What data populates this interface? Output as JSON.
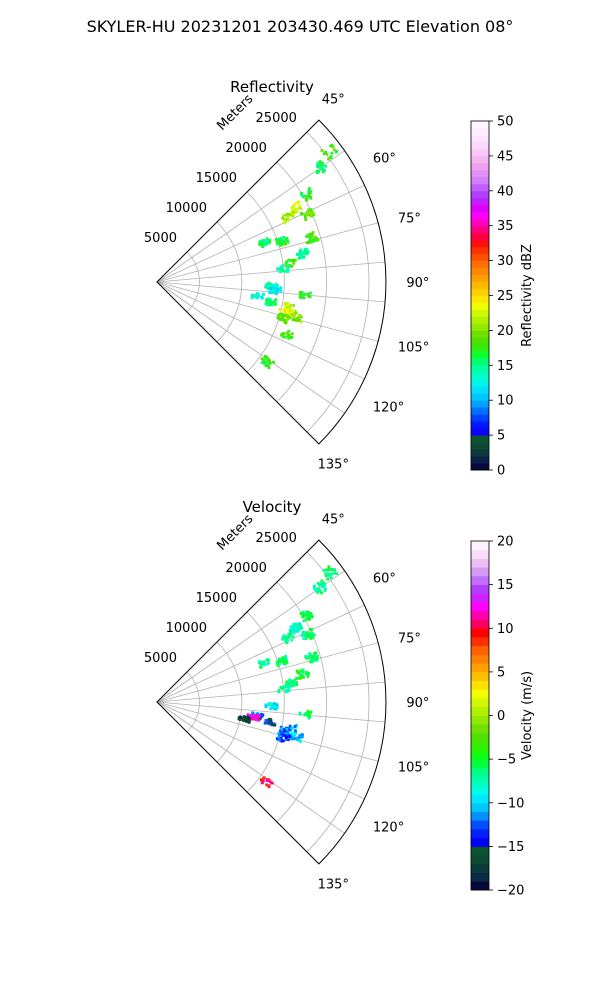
{
  "figure": {
    "title": "SKYLER-HU  20231201  203430.469 UTC Elevation 08°"
  },
  "chart_data": [
    {
      "type": "heatmap",
      "projection": "polar-sector",
      "title": "Reflectivity",
      "radial_label": "Meters",
      "radial_ticks": [
        5000,
        10000,
        15000,
        20000,
        25000
      ],
      "radial_tick_labels": [
        "5000",
        "10000",
        "15000",
        "20000",
        "25000"
      ],
      "rlim": [
        0,
        27000
      ],
      "angle_ticks": [
        45,
        60,
        75,
        90,
        105,
        120,
        135
      ],
      "angle_tick_labels": [
        "45°",
        "60°",
        "75°",
        "90°",
        "105°",
        "120°",
        "135°"
      ],
      "angle_range": [
        45,
        135
      ],
      "grid": true,
      "colorbar": {
        "label": "Reflectivity dBZ",
        "range": [
          0,
          50
        ],
        "ticks": [
          0,
          5,
          10,
          15,
          20,
          25,
          30,
          35,
          40,
          45,
          50
        ],
        "tick_labels": [
          "0",
          "5",
          "10",
          "15",
          "20",
          "25",
          "30",
          "35",
          "40",
          "45",
          "50"
        ],
        "colors": [
          "#08083a",
          "#0b1f4a",
          "#0a3a3a",
          "#0d4a32",
          "#0a5530",
          "#1000ff",
          "#0018ff",
          "#0040ff",
          "#0070ff",
          "#00a0ff",
          "#00c8ff",
          "#00e0ff",
          "#00f5e8",
          "#00ffc8",
          "#00ffa0",
          "#00ff70",
          "#10ff30",
          "#30ee10",
          "#50dd00",
          "#70e000",
          "#90ea00",
          "#b0f000",
          "#d0f800",
          "#f0ff00",
          "#ffe800",
          "#ffd000",
          "#ffb800",
          "#ffa000",
          "#ff8800",
          "#ff7000",
          "#ff5000",
          "#ff3000",
          "#ff1010",
          "#ff0040",
          "#ff0080",
          "#ff00c0",
          "#ff00ff",
          "#e000ff",
          "#c020ff",
          "#b040ff",
          "#c060ff",
          "#d080ff",
          "#e090f0",
          "#f0a0f0",
          "#f4b4f4",
          "#f8c8f8",
          "#fad8fa",
          "#fce4fc",
          "#fdeefd",
          "#fff4ff"
        ]
      },
      "echoes": [
        {
          "angle": 53,
          "range": 25500,
          "value": 18
        },
        {
          "angle": 55,
          "range": 23500,
          "value": 16
        },
        {
          "angle": 60,
          "range": 20500,
          "value": 17
        },
        {
          "angle": 62,
          "range": 18500,
          "value": 22
        },
        {
          "angle": 64,
          "range": 17200,
          "value": 21
        },
        {
          "angle": 66,
          "range": 19500,
          "value": 19
        },
        {
          "angle": 70,
          "range": 13500,
          "value": 16
        },
        {
          "angle": 72,
          "range": 15500,
          "value": 17
        },
        {
          "angle": 74,
          "range": 19000,
          "value": 18
        },
        {
          "angle": 79,
          "range": 17500,
          "value": 15
        },
        {
          "angle": 82,
          "range": 16000,
          "value": 18
        },
        {
          "angle": 84,
          "range": 15000,
          "value": 14
        },
        {
          "angle": 92,
          "range": 13500,
          "value": 14
        },
        {
          "angle": 95,
          "range": 17500,
          "value": 17
        },
        {
          "angle": 98,
          "range": 12000,
          "value": 13
        },
        {
          "angle": 100,
          "range": 13500,
          "value": 15
        },
        {
          "angle": 101,
          "range": 16000,
          "value": 22
        },
        {
          "angle": 103,
          "range": 15500,
          "value": 24
        },
        {
          "angle": 104,
          "range": 17000,
          "value": 20
        },
        {
          "angle": 106,
          "range": 15500,
          "value": 19
        },
        {
          "angle": 94,
          "range": 14000,
          "value": 12
        },
        {
          "angle": 112,
          "range": 16500,
          "value": 18
        },
        {
          "angle": 126,
          "range": 16000,
          "value": 17
        }
      ]
    },
    {
      "type": "heatmap",
      "projection": "polar-sector",
      "title": "Velocity",
      "radial_label": "Meters",
      "radial_ticks": [
        5000,
        10000,
        15000,
        20000,
        25000
      ],
      "radial_tick_labels": [
        "5000",
        "10000",
        "15000",
        "20000",
        "25000"
      ],
      "rlim": [
        0,
        27000
      ],
      "angle_ticks": [
        45,
        60,
        75,
        90,
        105,
        120,
        135
      ],
      "angle_tick_labels": [
        "45°",
        "60°",
        "75°",
        "90°",
        "105°",
        "120°",
        "135°"
      ],
      "angle_range": [
        45,
        135
      ],
      "grid": true,
      "colorbar": {
        "label": "Velocity (m/s)",
        "range": [
          -20,
          20
        ],
        "ticks": [
          -20,
          -15,
          -10,
          -5,
          0,
          5,
          10,
          15,
          20
        ],
        "tick_labels": [
          "−20",
          "−15",
          "−10",
          "−5",
          "0",
          "5",
          "10",
          "15",
          "20"
        ],
        "colors": [
          "#08083a",
          "#0a2a45",
          "#0a3a3a",
          "#0d4a32",
          "#0a5530",
          "#0000ff",
          "#0020ff",
          "#0050ff",
          "#0090ff",
          "#00c8ff",
          "#00e8ff",
          "#00ffe0",
          "#00ffb0",
          "#00ff80",
          "#00ff40",
          "#10ff10",
          "#30f000",
          "#50e000",
          "#70e000",
          "#90ea00",
          "#b0f000",
          "#d0f800",
          "#f0ff00",
          "#ffe000",
          "#ffc000",
          "#ffa000",
          "#ff8000",
          "#ff6000",
          "#ff3000",
          "#ff0000",
          "#ff0060",
          "#ff00b0",
          "#ff00ff",
          "#d020ff",
          "#b040ff",
          "#c070ff",
          "#d898f8",
          "#ecc0f4",
          "#f8dcf8",
          "#fff0ff"
        ]
      },
      "echoes": [
        {
          "angle": 53,
          "range": 25500,
          "value": -6
        },
        {
          "angle": 55,
          "range": 23500,
          "value": -7
        },
        {
          "angle": 60,
          "range": 20500,
          "value": -6
        },
        {
          "angle": 62,
          "range": 18500,
          "value": -8
        },
        {
          "angle": 64,
          "range": 17200,
          "value": -7
        },
        {
          "angle": 66,
          "range": 19500,
          "value": -6
        },
        {
          "angle": 70,
          "range": 13500,
          "value": -7
        },
        {
          "angle": 72,
          "range": 15500,
          "value": -6
        },
        {
          "angle": 74,
          "range": 19000,
          "value": -6
        },
        {
          "angle": 79,
          "range": 17500,
          "value": -5
        },
        {
          "angle": 82,
          "range": 16000,
          "value": -6
        },
        {
          "angle": 84,
          "range": 15000,
          "value": -7
        },
        {
          "angle": 92,
          "range": 13500,
          "value": -9
        },
        {
          "angle": 95,
          "range": 17500,
          "value": -6
        },
        {
          "angle": 98,
          "range": 12000,
          "value": -12
        },
        {
          "angle": 100,
          "range": 13500,
          "value": -14
        },
        {
          "angle": 101,
          "range": 16000,
          "value": -11
        },
        {
          "angle": 103,
          "range": 15500,
          "value": -12
        },
        {
          "angle": 104,
          "range": 17000,
          "value": -10
        },
        {
          "angle": 106,
          "range": 15500,
          "value": -13
        },
        {
          "angle": 99,
          "range": 11500,
          "value": 12
        },
        {
          "angle": 101,
          "range": 10500,
          "value": -17
        },
        {
          "angle": 126,
          "range": 16000,
          "value": 10
        }
      ]
    }
  ]
}
